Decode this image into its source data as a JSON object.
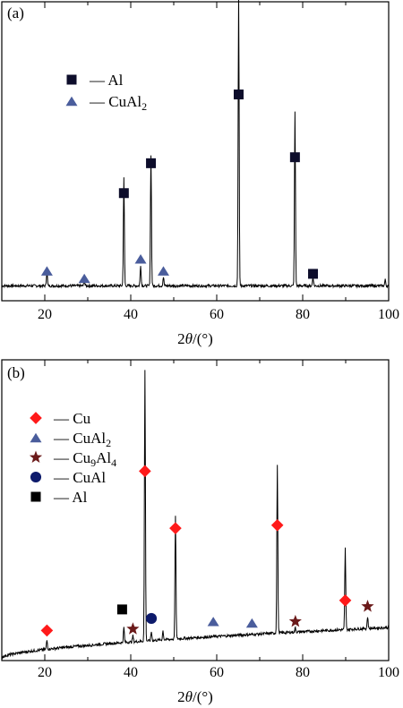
{
  "chart_data": [
    {
      "type": "line",
      "panel_label": "(a)",
      "xlabel": "2θ/(°)",
      "xlim": [
        10,
        100
      ],
      "xticks": [
        20,
        40,
        60,
        80,
        100
      ],
      "ylim": [
        0,
        100
      ],
      "baseline": 5,
      "peaks": [
        {
          "x": 20.5,
          "height": 5
        },
        {
          "x": 29.2,
          "height": 1.5
        },
        {
          "x": 38.4,
          "height": 36
        },
        {
          "x": 42.3,
          "height": 7
        },
        {
          "x": 44.7,
          "height": 44
        },
        {
          "x": 47.6,
          "height": 3
        },
        {
          "x": 65.1,
          "height": 98
        },
        {
          "x": 78.2,
          "height": 58
        },
        {
          "x": 82.4,
          "height": 3
        },
        {
          "x": 99.2,
          "height": 2
        }
      ],
      "legend": [
        {
          "marker": "square",
          "color": "#0d0d2b",
          "label": "Al",
          "sub": ""
        },
        {
          "marker": "triangle",
          "color": "#4a5d9c",
          "label": "CuAl",
          "sub": "2"
        }
      ],
      "markers": [
        {
          "phase": "CuAl2",
          "x": 20.5,
          "y": 10
        },
        {
          "phase": "CuAl2",
          "x": 29.2,
          "y": 7.5
        },
        {
          "phase": "CuAl2",
          "x": 42.3,
          "y": 14
        },
        {
          "phase": "CuAl2",
          "x": 47.6,
          "y": 10
        },
        {
          "phase": "Al",
          "x": 38.4,
          "y": 36
        },
        {
          "phase": "Al",
          "x": 44.7,
          "y": 46
        },
        {
          "phase": "Al",
          "x": 65.1,
          "y": 69
        },
        {
          "phase": "Al",
          "x": 78.2,
          "y": 48
        },
        {
          "phase": "Al",
          "x": 82.4,
          "y": 9
        }
      ]
    },
    {
      "type": "line",
      "panel_label": "(b)",
      "xlabel": "2θ/(°)",
      "xlim": [
        10,
        100
      ],
      "xticks": [
        20,
        40,
        60,
        80,
        100
      ],
      "ylim": [
        0,
        100
      ],
      "baseline_start": 1,
      "baseline_end": 11,
      "peaks": [
        {
          "x": 20.5,
          "height": 3
        },
        {
          "x": 38.4,
          "height": 5
        },
        {
          "x": 40.5,
          "height": 2
        },
        {
          "x": 43.3,
          "height": 90
        },
        {
          "x": 44.8,
          "height": 3
        },
        {
          "x": 47.5,
          "height": 3
        },
        {
          "x": 50.4,
          "height": 41
        },
        {
          "x": 74.1,
          "height": 56
        },
        {
          "x": 78.3,
          "height": 1.5
        },
        {
          "x": 89.9,
          "height": 27
        },
        {
          "x": 95.1,
          "height": 4
        }
      ],
      "legend": [
        {
          "marker": "diamond",
          "color": "#ff1a1a",
          "label": "Cu",
          "sub": "",
          "label2": "",
          "sub2": ""
        },
        {
          "marker": "triangle",
          "color": "#4a5d9c",
          "label": "CuAl",
          "sub": "2",
          "label2": "",
          "sub2": ""
        },
        {
          "marker": "star",
          "color": "#6b1a1a",
          "label": "Cu",
          "sub": "9",
          "label2": "Al",
          "sub2": "4"
        },
        {
          "marker": "circle",
          "color": "#0d1a6b",
          "label": "CuAl",
          "sub": "",
          "label2": "",
          "sub2": ""
        },
        {
          "marker": "square",
          "color": "#000000",
          "label": "Al",
          "sub": "",
          "label2": "",
          "sub2": ""
        }
      ],
      "markers": [
        {
          "phase": "Cu",
          "x": 20.5,
          "y": 10
        },
        {
          "phase": "Cu",
          "x": 43.3,
          "y": 63
        },
        {
          "phase": "Cu",
          "x": 50.4,
          "y": 44
        },
        {
          "phase": "Cu",
          "x": 74.1,
          "y": 45
        },
        {
          "phase": "Cu",
          "x": 89.9,
          "y": 20
        },
        {
          "phase": "CuAl2",
          "x": 59.2,
          "y": 13
        },
        {
          "phase": "CuAl2",
          "x": 68.2,
          "y": 12.5
        },
        {
          "phase": "Cu9Al4",
          "x": 40.5,
          "y": 10.5
        },
        {
          "phase": "Cu9Al4",
          "x": 78.3,
          "y": 13
        },
        {
          "phase": "Cu9Al4",
          "x": 95.1,
          "y": 18
        },
        {
          "phase": "CuAl",
          "x": 44.8,
          "y": 14
        },
        {
          "phase": "Al",
          "x": 38.0,
          "y": 17
        }
      ]
    }
  ]
}
